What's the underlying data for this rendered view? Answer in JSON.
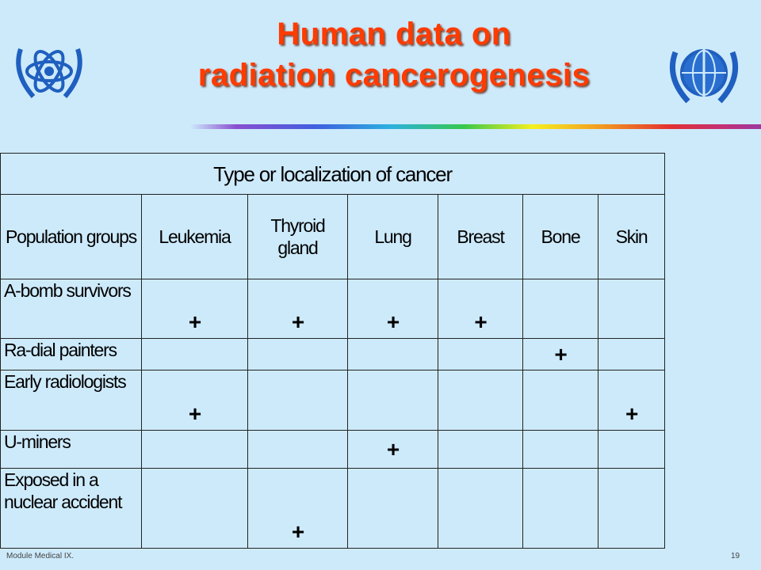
{
  "header": {
    "title_lines": [
      "Human data on",
      "radiation cancerogenesis"
    ]
  },
  "table": {
    "caption": "Type or localization of cancer",
    "columns": [
      "Population groups",
      "Leukemia",
      "Thyroid gland",
      "Lung",
      "Breast",
      "Bone",
      "Skin"
    ],
    "rows": [
      [
        "A-bomb survivors",
        "+",
        "+",
        "+",
        "+",
        null,
        null
      ],
      [
        "Ra-dial painters",
        null,
        null,
        null,
        null,
        "+",
        null
      ],
      [
        "Early radiologists",
        "+",
        null,
        null,
        null,
        null,
        "+"
      ],
      [
        "U-miners",
        null,
        null,
        "+",
        null,
        null,
        null
      ],
      [
        "Exposed in a nuclear accident",
        null,
        "+",
        null,
        null,
        null,
        null
      ]
    ]
  },
  "footer": {
    "module": "Module Medical IX.",
    "page": "19"
  }
}
